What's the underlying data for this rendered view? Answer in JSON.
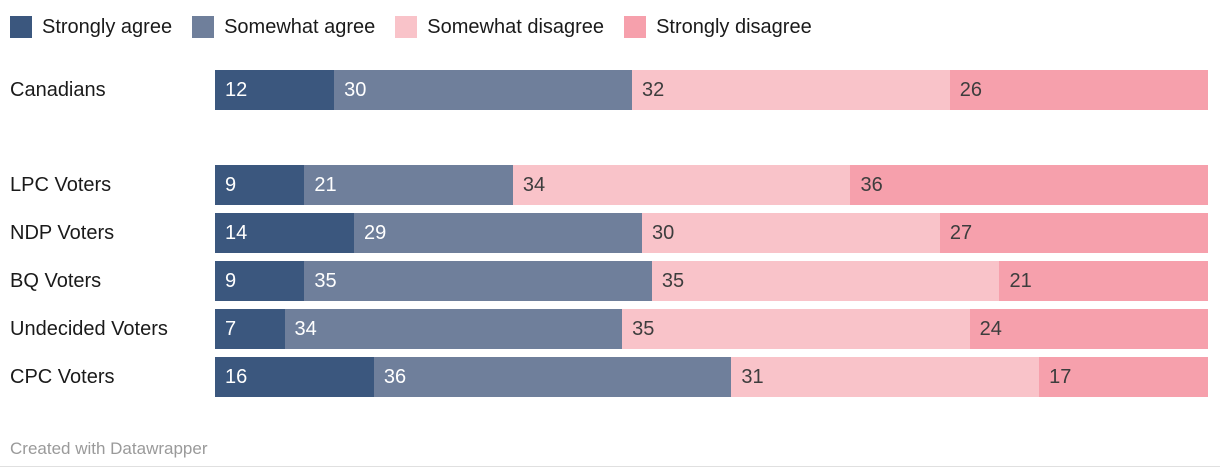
{
  "chart_data": {
    "type": "bar",
    "stacked": true,
    "orientation": "horizontal",
    "unit": "percent",
    "xlim": [
      0,
      100
    ],
    "legend_position": "top",
    "value_labels": "inside-left",
    "categories": [
      "Canadians",
      "LPC Voters",
      "NDP Voters",
      "BQ Voters",
      "Undecided Voters",
      "CPC Voters"
    ],
    "series": [
      {
        "name": "Strongly agree",
        "color": "#3B577E",
        "text_color": "#ffffff",
        "values": [
          12,
          9,
          14,
          9,
          7,
          16
        ]
      },
      {
        "name": "Somewhat agree",
        "color": "#6F7F9B",
        "text_color": "#ffffff",
        "values": [
          30,
          21,
          29,
          35,
          34,
          36
        ]
      },
      {
        "name": "Somewhat disagree",
        "color": "#F9C3C9",
        "text_color": "#3d3d3d",
        "values": [
          32,
          34,
          30,
          35,
          35,
          31
        ]
      },
      {
        "name": "Strongly disagree",
        "color": "#F6A0AC",
        "text_color": "#3d3d3d",
        "values": [
          26,
          36,
          27,
          21,
          24,
          17
        ]
      }
    ]
  },
  "footer": {
    "credit": "Created with Datawrapper"
  }
}
